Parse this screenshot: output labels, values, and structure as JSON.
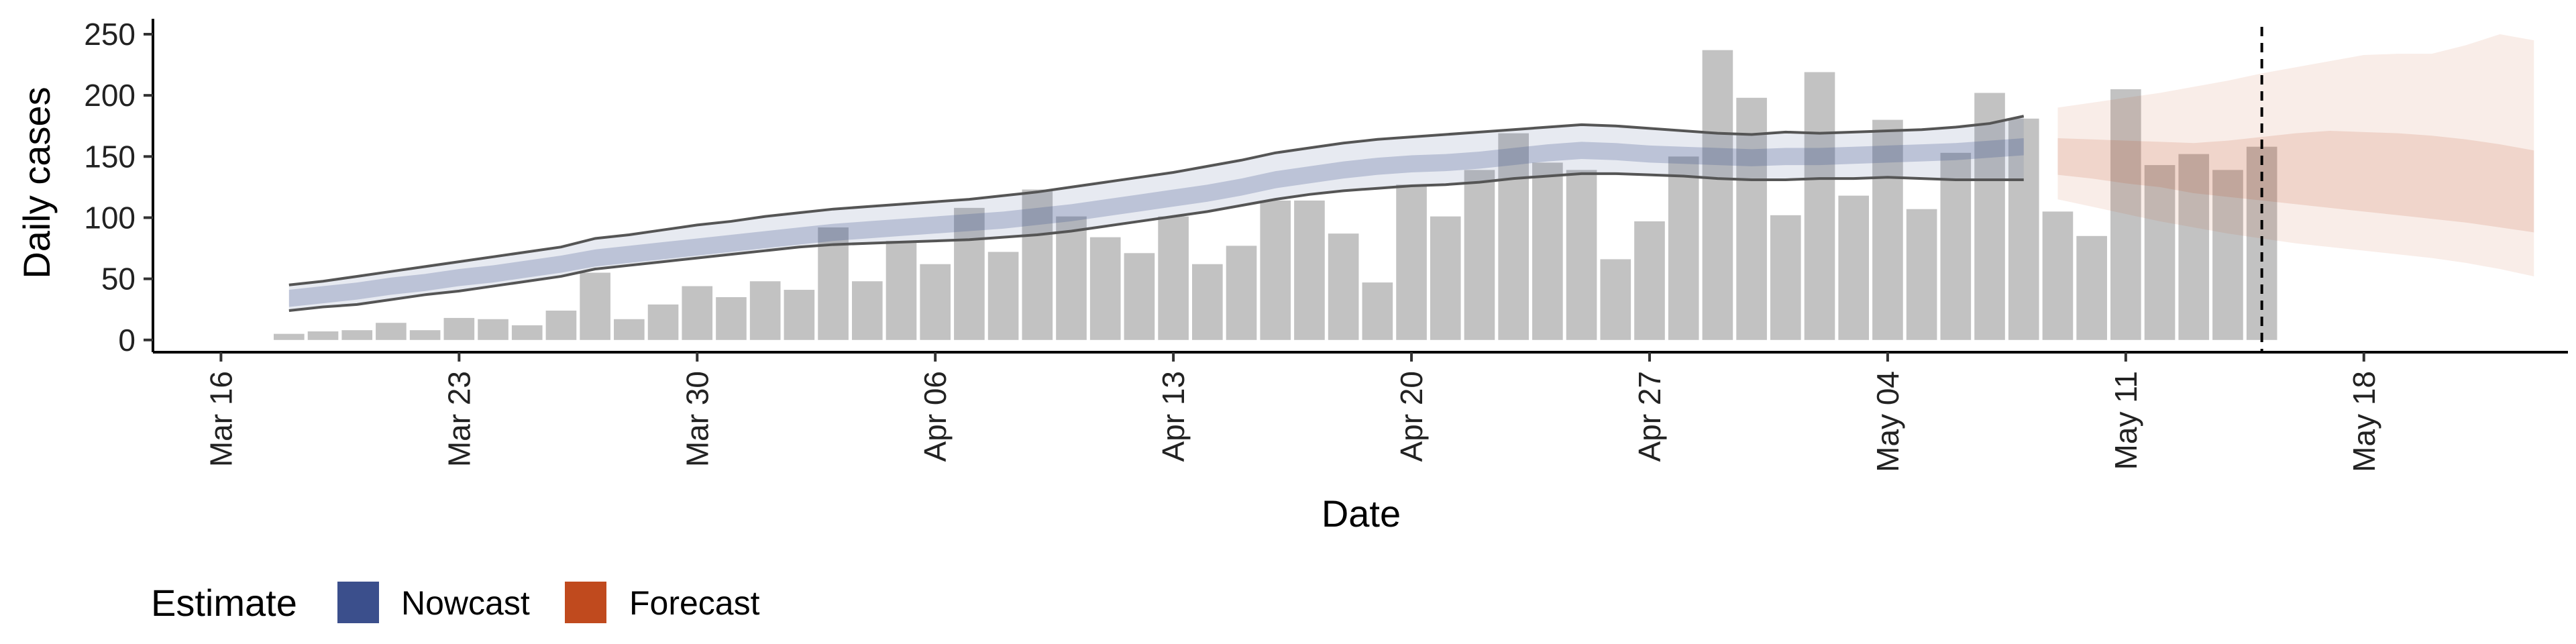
{
  "chart_data": {
    "type": "bar",
    "xlabel": "Date",
    "ylabel": "Daily cases",
    "ylim": [
      -10,
      267
    ],
    "xlim": [
      "2020-03-14",
      "2020-05-24"
    ],
    "y_ticks": [
      0,
      50,
      100,
      150,
      200,
      250
    ],
    "x_ticks": [
      {
        "date": "2020-03-16",
        "label": "Mar 16"
      },
      {
        "date": "2020-03-23",
        "label": "Mar 23"
      },
      {
        "date": "2020-03-30",
        "label": "Mar 30"
      },
      {
        "date": "2020-04-06",
        "label": "Apr 06"
      },
      {
        "date": "2020-04-13",
        "label": "Apr 13"
      },
      {
        "date": "2020-04-20",
        "label": "Apr 20"
      },
      {
        "date": "2020-04-27",
        "label": "Apr 27"
      },
      {
        "date": "2020-05-04",
        "label": "May 04"
      },
      {
        "date": "2020-05-11",
        "label": "May 11"
      },
      {
        "date": "2020-05-18",
        "label": "May 18"
      }
    ],
    "grid": false,
    "bar_color": "#bdbdbd",
    "nowcast_color": "#3b4f8c",
    "forecast_color": "#c04a1e",
    "reference_line_date": "2020-05-15",
    "observed_cases": {
      "start_date": "2020-03-18",
      "values": [
        5,
        7,
        8,
        14,
        8,
        18,
        17,
        12,
        24,
        55,
        17,
        29,
        44,
        35,
        48,
        41,
        92,
        48,
        81,
        62,
        108,
        72,
        123,
        101,
        84,
        71,
        101,
        62,
        77,
        114,
        114,
        87,
        47,
        127,
        101,
        139,
        169,
        145,
        139,
        66,
        97,
        150,
        237,
        198,
        102,
        219,
        118,
        180,
        107,
        153,
        202,
        181,
        105,
        85,
        205,
        143,
        152,
        139,
        158
      ]
    },
    "nowcast": {
      "start_date": "2020-03-18",
      "median": [
        34,
        37,
        40,
        44,
        47,
        51,
        54,
        58,
        62,
        67,
        70,
        73,
        76,
        79,
        82,
        85,
        88,
        90,
        92,
        94,
        96,
        98,
        101,
        104,
        108,
        112,
        116,
        120,
        125,
        131,
        135,
        139,
        142,
        144,
        145,
        147,
        150,
        153,
        155,
        154,
        152,
        151,
        150,
        149,
        150,
        150,
        151,
        152,
        153,
        154,
        156,
        158
      ],
      "lower_90": [
        24,
        27,
        29,
        33,
        37,
        40,
        44,
        48,
        52,
        58,
        61,
        64,
        67,
        70,
        73,
        76,
        78,
        79,
        80,
        81,
        82,
        84,
        86,
        89,
        93,
        97,
        101,
        105,
        110,
        115,
        119,
        122,
        124,
        126,
        127,
        129,
        132,
        134,
        136,
        136,
        135,
        134,
        132,
        131,
        131,
        132,
        132,
        133,
        132,
        131,
        131,
        131
      ],
      "upper_90": [
        45,
        48,
        52,
        56,
        60,
        64,
        68,
        72,
        76,
        83,
        86,
        90,
        94,
        97,
        101,
        104,
        107,
        109,
        111,
        113,
        115,
        118,
        121,
        125,
        129,
        133,
        137,
        142,
        147,
        153,
        157,
        161,
        164,
        166,
        168,
        170,
        172,
        174,
        176,
        175,
        173,
        171,
        169,
        168,
        170,
        169,
        170,
        171,
        172,
        174,
        177,
        183
      ]
    },
    "forecast": {
      "start_date": "2020-05-09",
      "median": [
        150,
        148,
        145,
        143,
        140,
        138,
        136,
        133,
        131,
        129,
        127,
        125,
        123,
        121,
        120
      ],
      "lower_50": [
        135,
        132,
        128,
        125,
        120,
        117,
        114,
        111,
        108,
        105,
        102,
        99,
        96,
        92,
        88
      ],
      "upper_50": [
        165,
        164,
        163,
        162,
        161,
        163,
        166,
        169,
        171,
        170,
        169,
        167,
        164,
        160,
        155
      ],
      "lower_90": [
        115,
        109,
        103,
        97,
        92,
        87,
        83,
        79,
        76,
        73,
        70,
        67,
        63,
        58,
        52
      ],
      "upper_90": [
        190,
        194,
        198,
        202,
        207,
        212,
        218,
        223,
        228,
        233,
        234,
        234,
        241,
        250,
        245
      ]
    }
  },
  "legend": {
    "title": "Estimate",
    "items": [
      {
        "label": "Nowcast",
        "color": "#3b4f8c"
      },
      {
        "label": "Forecast",
        "color": "#c04a1e"
      }
    ]
  }
}
